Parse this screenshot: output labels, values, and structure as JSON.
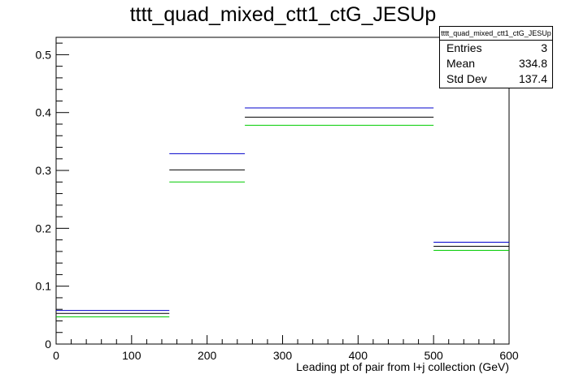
{
  "title": "tttt_quad_mixed_ctt1_ctG_JESUp",
  "stats": {
    "name": "tttt_quad_mixed_ctt1_ctG_JESUp",
    "rows": [
      {
        "label": "Entries",
        "value": "3"
      },
      {
        "label": "Mean",
        "value": "334.8"
      },
      {
        "label": "Std Dev",
        "value": "137.4"
      }
    ]
  },
  "chart_data": {
    "type": "bar",
    "title": "tttt_quad_mixed_ctt1_ctG_JESUp",
    "xlabel": "Leading pt of pair from l+j collection (GeV)",
    "ylabel": "",
    "xlim": [
      0,
      600
    ],
    "ylim": [
      0,
      0.53
    ],
    "x_ticks": [
      0,
      100,
      200,
      300,
      400,
      500,
      600
    ],
    "y_ticks": [
      0,
      0.1,
      0.2,
      0.3,
      0.4,
      0.5
    ],
    "bin_edges": [
      0,
      150,
      250,
      500,
      600
    ],
    "series": [
      {
        "color": "#0000cc",
        "values": [
          0.058,
          0.329,
          0.408,
          0.176
        ]
      },
      {
        "color": "#000000",
        "values": [
          0.053,
          0.301,
          0.392,
          0.169
        ]
      },
      {
        "color": "#00cc00",
        "values": [
          0.047,
          0.28,
          0.378,
          0.162
        ]
      }
    ],
    "grid": false,
    "legend": "top-right"
  }
}
